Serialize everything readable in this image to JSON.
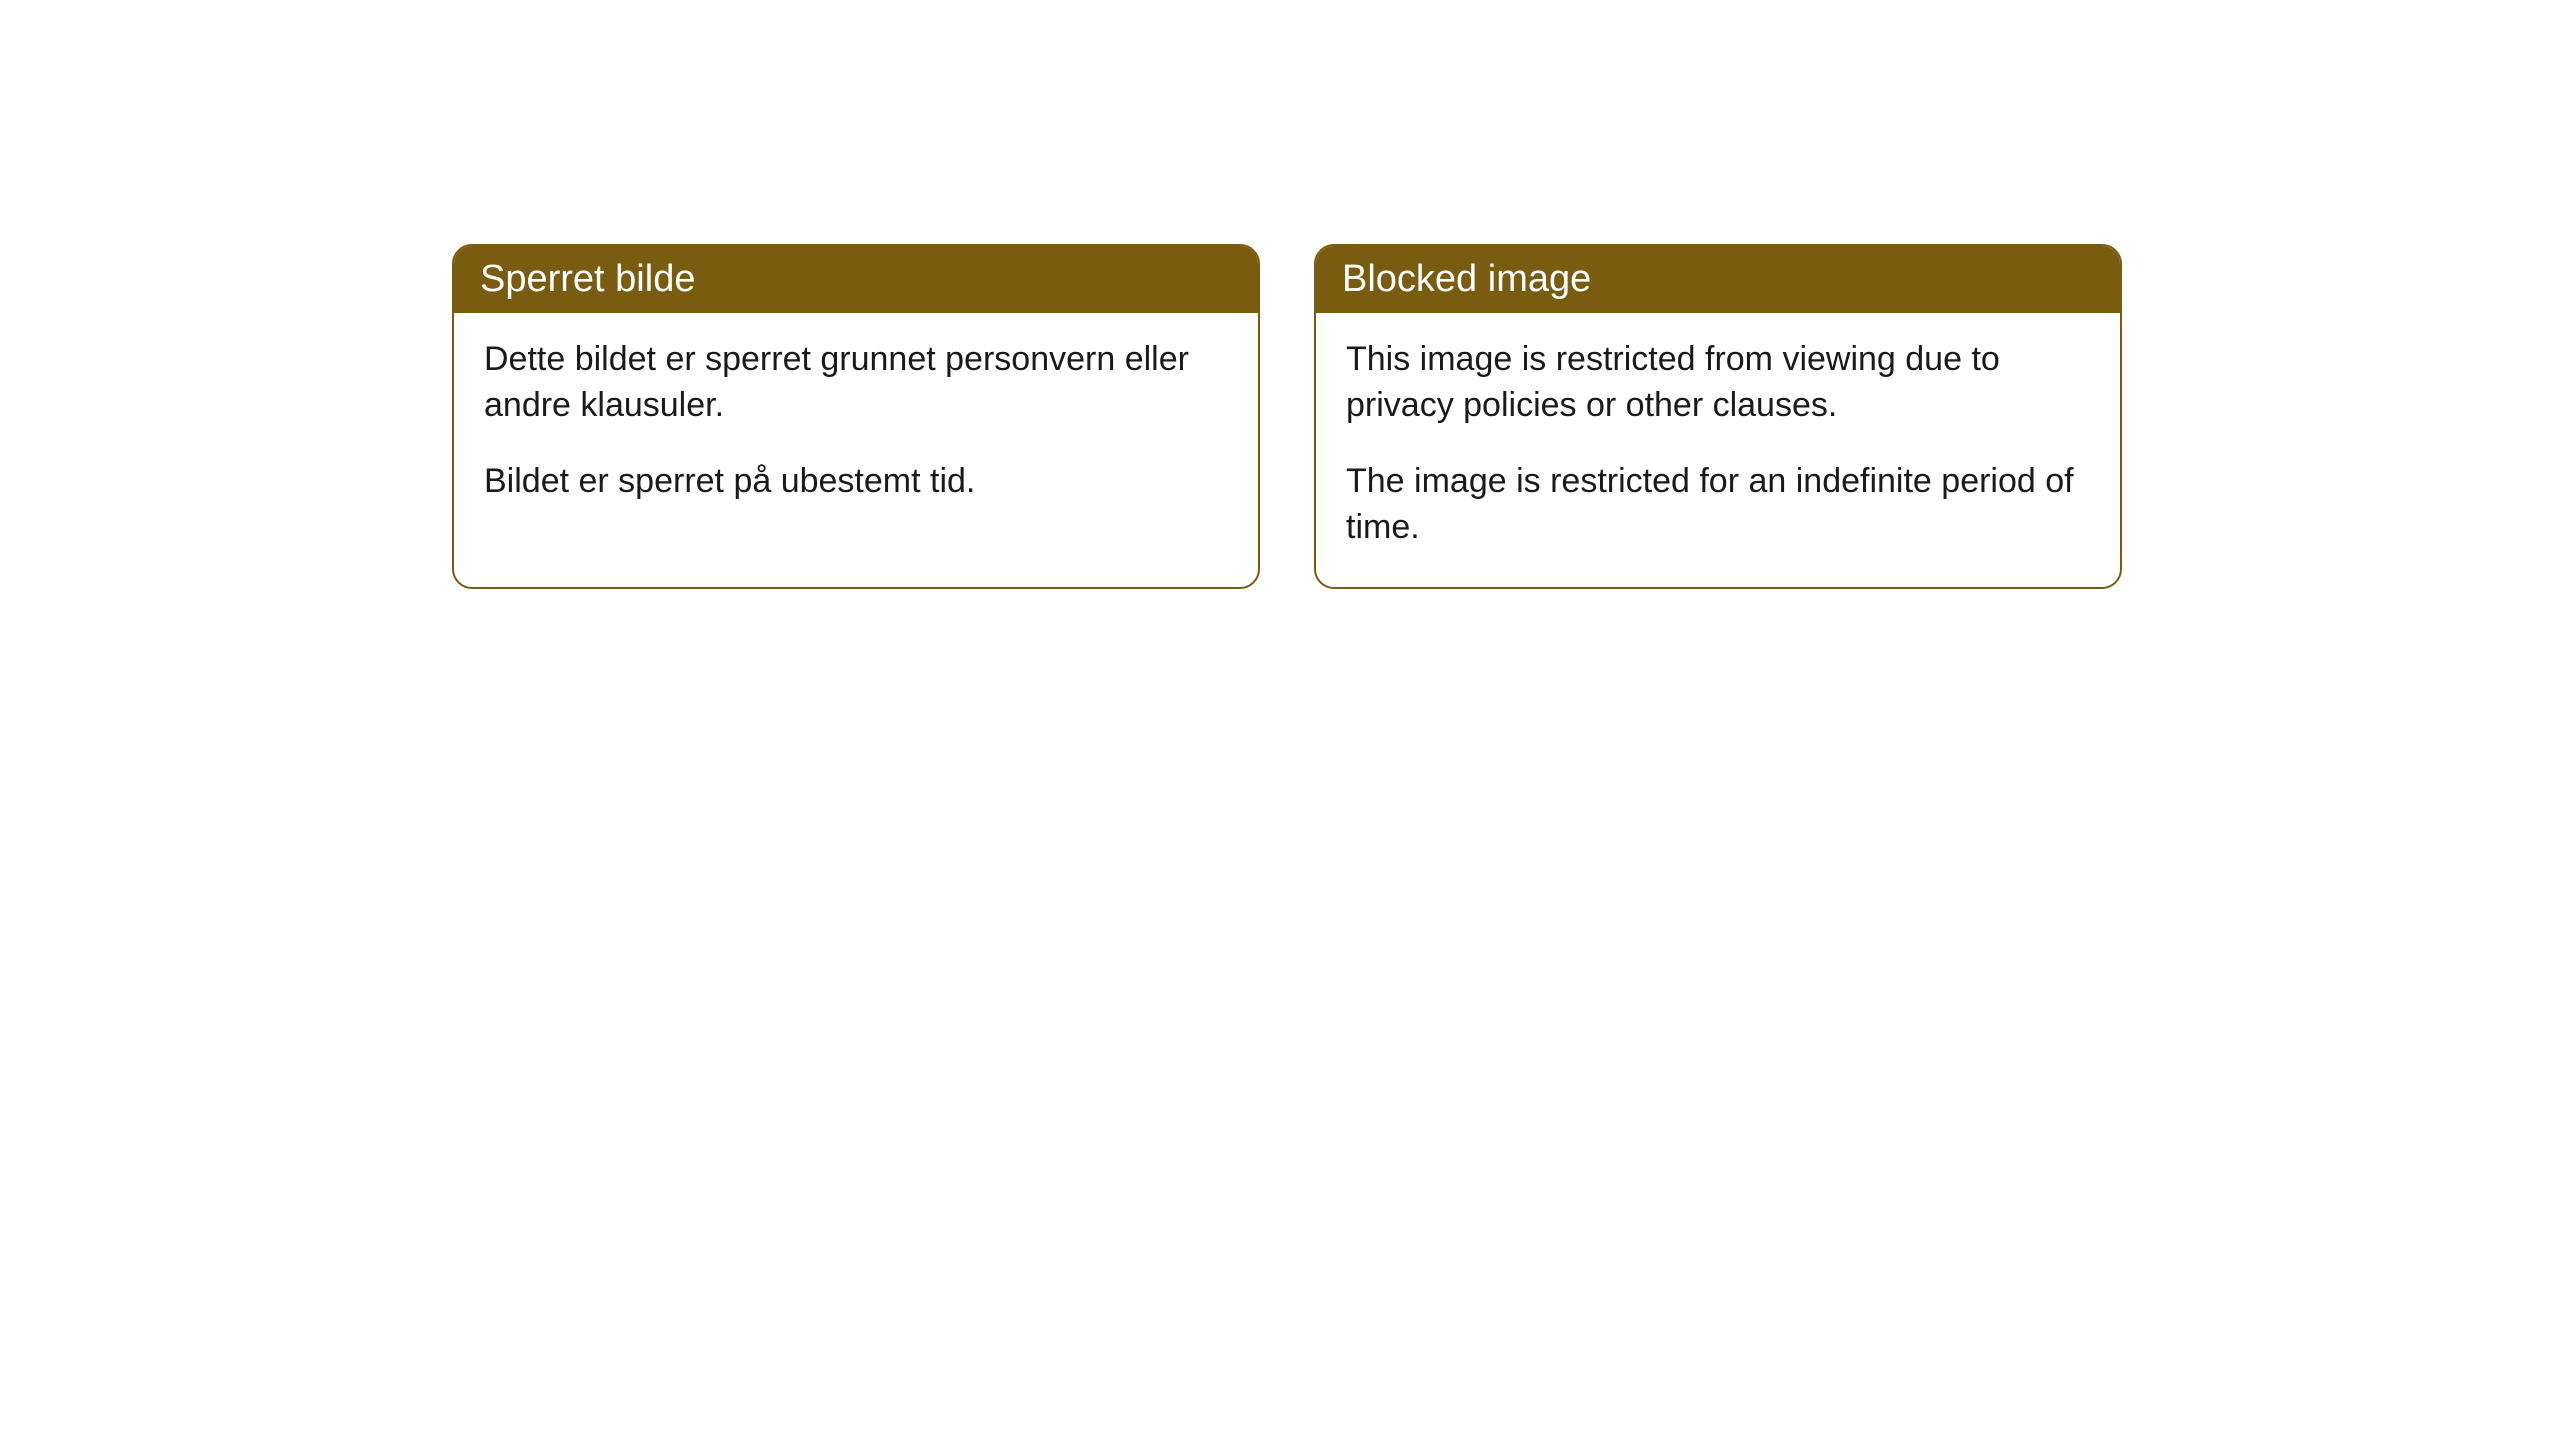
{
  "cards": [
    {
      "title": "Sperret bilde",
      "paragraph1": "Dette bildet er sperret grunnet personvern eller andre klausuler.",
      "paragraph2": "Bildet er sperret på ubestemt tid."
    },
    {
      "title": "Blocked image",
      "paragraph1": "This image is restricted from viewing due to privacy policies or other clauses.",
      "paragraph2": "The image is restricted for an indefinite period of time."
    }
  ],
  "styling": {
    "header_bg_color": "#7a5c10",
    "header_text_color": "#ffffff",
    "border_color": "#7a5c10",
    "body_bg_color": "#ffffff",
    "body_text_color": "#1a1a1a",
    "border_radius": 20,
    "title_fontsize": 38,
    "body_fontsize": 34
  }
}
